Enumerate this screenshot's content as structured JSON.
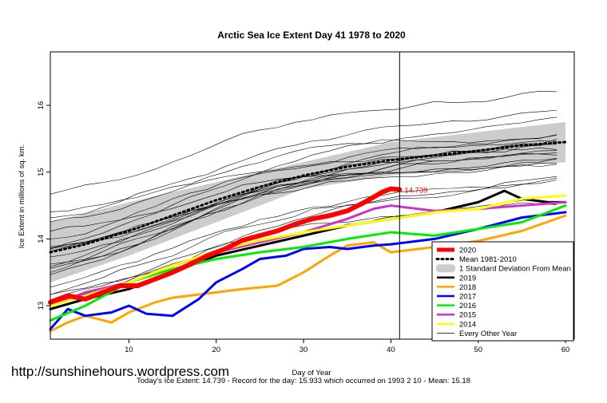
{
  "chart_data": {
    "type": "line",
    "title": "Arctic Sea Ice Extent Day 41 1978 to 2020",
    "xlabel": "Day of Year",
    "ylabel": "Ice Extent in millions of sq. km.",
    "xlim": [
      1,
      61
    ],
    "ylim": [
      12.5,
      16.8
    ],
    "x_ticks": [
      10,
      20,
      30,
      40,
      50,
      60
    ],
    "y_ticks": [
      13,
      14,
      15,
      16
    ],
    "marker_day": 41,
    "current_value_label": "14.739",
    "legend_position": "bottom-right",
    "legend": [
      {
        "label": "2020",
        "color": "#ff0000",
        "style": "thick"
      },
      {
        "label": "Mean 1981-2010",
        "color": "#000000",
        "style": "dotted"
      },
      {
        "label": "1 Standard Deviation From Mean",
        "color": "#cccccc",
        "style": "band"
      },
      {
        "label": "2019",
        "color": "#000000",
        "style": "solid"
      },
      {
        "label": "2018",
        "color": "#ffa500",
        "style": "solid"
      },
      {
        "label": "2017",
        "color": "#0000ff",
        "style": "solid"
      },
      {
        "label": "2016",
        "color": "#00ee00",
        "style": "solid"
      },
      {
        "label": "2015",
        "color": "#cc33cc",
        "style": "solid"
      },
      {
        "label": "2014",
        "color": "#ffff00",
        "style": "solid"
      },
      {
        "label": "Every Other Year",
        "color": "#000000",
        "style": "thin"
      }
    ],
    "band": {
      "x": [
        1,
        10,
        20,
        30,
        40,
        50,
        60
      ],
      "upper": [
        14.25,
        14.55,
        14.85,
        15.15,
        15.45,
        15.6,
        15.75
      ],
      "lower": [
        13.35,
        13.75,
        14.25,
        14.75,
        14.95,
        15.05,
        15.15
      ]
    },
    "mean": {
      "x": [
        1,
        5,
        10,
        15,
        20,
        25,
        30,
        35,
        40,
        45,
        50,
        55,
        60
      ],
      "y": [
        13.8,
        13.92,
        14.12,
        14.35,
        14.58,
        14.78,
        14.95,
        15.08,
        15.18,
        15.25,
        15.32,
        15.4,
        15.45
      ]
    },
    "series": [
      {
        "name": "2020",
        "color": "#ff0000",
        "width": 6,
        "x": [
          1,
          3,
          5,
          7,
          9,
          11,
          13,
          15,
          17,
          19,
          21,
          23,
          25,
          27,
          29,
          31,
          33,
          35,
          37,
          39,
          40,
          41
        ],
        "y": [
          13.05,
          13.15,
          13.1,
          13.2,
          13.3,
          13.3,
          13.4,
          13.5,
          13.62,
          13.75,
          13.85,
          13.98,
          14.05,
          14.12,
          14.22,
          14.3,
          14.35,
          14.42,
          14.55,
          14.7,
          14.75,
          14.739
        ]
      },
      {
        "name": "2019",
        "color": "#000000",
        "width": 3,
        "x": [
          1,
          5,
          10,
          15,
          20,
          25,
          30,
          35,
          40,
          45,
          50,
          53,
          55,
          58,
          60
        ],
        "y": [
          12.95,
          13.1,
          13.25,
          13.5,
          13.75,
          13.9,
          14.05,
          14.2,
          14.3,
          14.4,
          14.55,
          14.72,
          14.6,
          14.55,
          14.55
        ]
      },
      {
        "name": "2018",
        "color": "#ffa500",
        "width": 3,
        "x": [
          1,
          3,
          5,
          8,
          10,
          13,
          15,
          20,
          23,
          27,
          30,
          33,
          35,
          38,
          40,
          45,
          50,
          55,
          60
        ],
        "y": [
          12.62,
          12.75,
          12.85,
          12.75,
          12.9,
          13.05,
          13.12,
          13.2,
          13.25,
          13.3,
          13.5,
          13.75,
          13.9,
          13.95,
          13.8,
          13.88,
          13.97,
          14.12,
          14.35
        ]
      },
      {
        "name": "2017",
        "color": "#0000ff",
        "width": 3,
        "x": [
          1,
          3,
          5,
          8,
          10,
          12,
          15,
          18,
          20,
          23,
          25,
          28,
          30,
          33,
          35,
          38,
          40,
          45,
          50,
          55,
          60
        ],
        "y": [
          12.65,
          12.95,
          12.85,
          12.9,
          13.0,
          12.88,
          12.85,
          13.1,
          13.35,
          13.55,
          13.7,
          13.75,
          13.85,
          13.88,
          13.85,
          13.9,
          13.92,
          14.0,
          14.15,
          14.32,
          14.4
        ]
      },
      {
        "name": "2016",
        "color": "#00ee00",
        "width": 3,
        "x": [
          1,
          5,
          10,
          15,
          20,
          25,
          30,
          35,
          40,
          45,
          50,
          55,
          60
        ],
        "y": [
          12.78,
          13.0,
          13.35,
          13.55,
          13.7,
          13.8,
          13.88,
          14.0,
          14.1,
          14.05,
          14.15,
          14.25,
          14.5
        ]
      },
      {
        "name": "2015",
        "color": "#cc33cc",
        "width": 3,
        "x": [
          1,
          5,
          10,
          15,
          20,
          25,
          30,
          35,
          38,
          40,
          45,
          50,
          55,
          60
        ],
        "y": [
          13.0,
          13.2,
          13.35,
          13.6,
          13.8,
          13.95,
          14.1,
          14.3,
          14.45,
          14.5,
          14.42,
          14.45,
          14.5,
          14.55
        ]
      },
      {
        "name": "2014",
        "color": "#ffff00",
        "width": 3,
        "x": [
          1,
          5,
          10,
          15,
          20,
          25,
          30,
          35,
          40,
          45,
          50,
          55,
          60
        ],
        "y": [
          13.0,
          13.15,
          13.35,
          13.6,
          13.82,
          13.98,
          14.1,
          14.2,
          14.3,
          14.4,
          14.45,
          14.6,
          14.65
        ]
      }
    ]
  },
  "watermark": "http://sunshinehours.wordpress.com",
  "footer": "Today's Ice Extent: 14.739  - Record for the day: 15.933 which occurred on 1993 2 10  - Mean: 15.18"
}
